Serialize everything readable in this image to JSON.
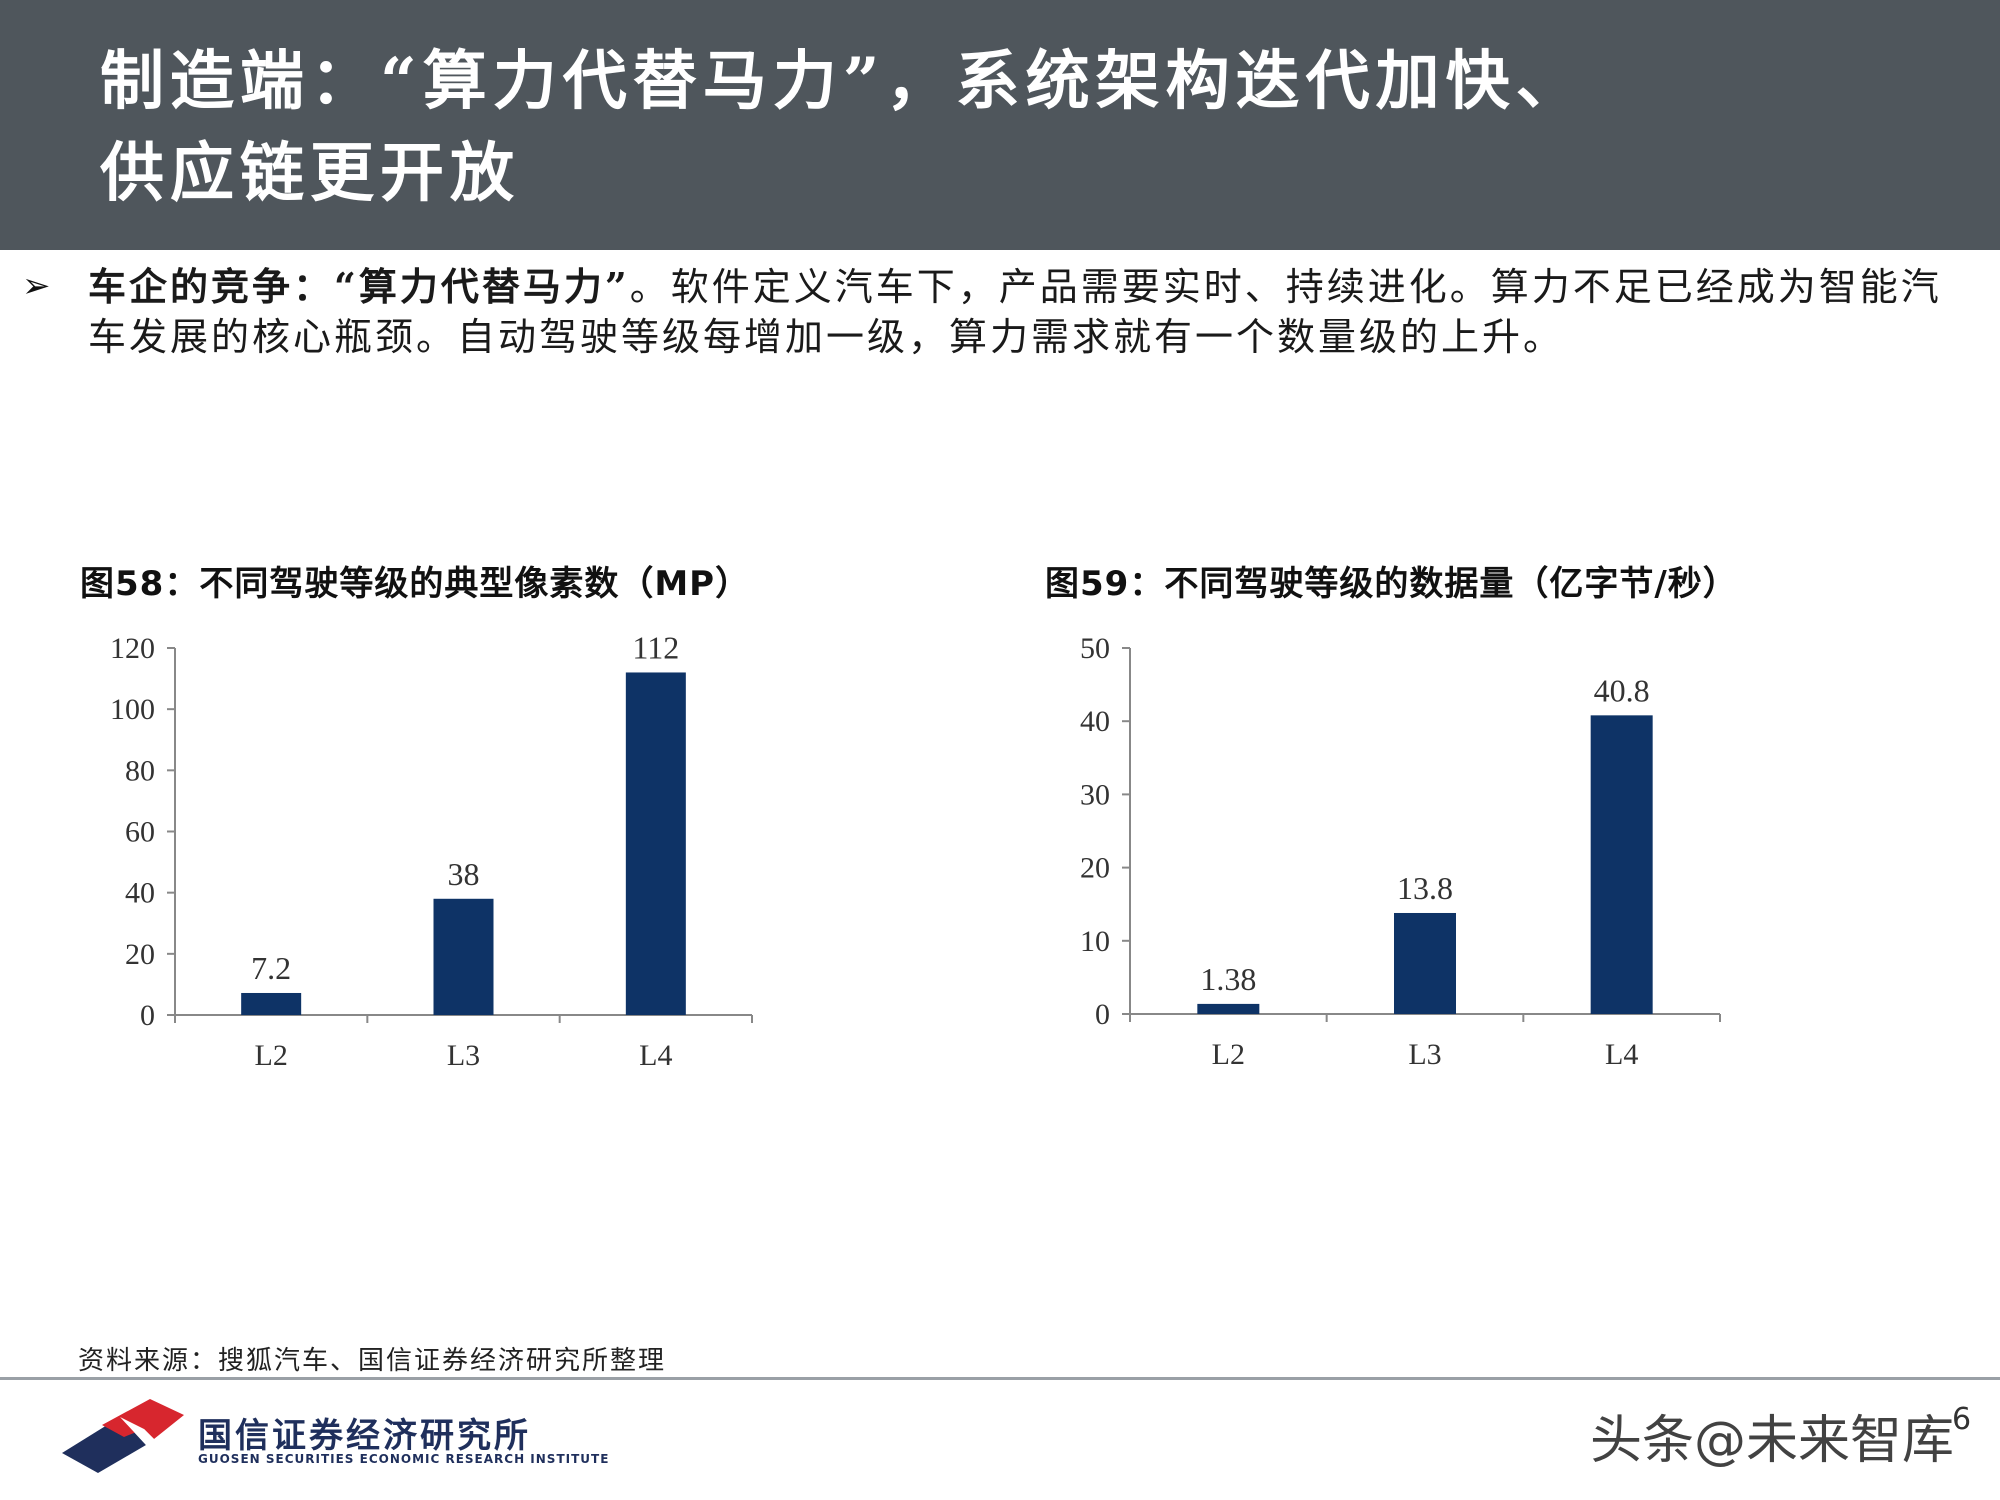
{
  "header": {
    "title_line1": "制造端：“算力代替马力”，系统架构迭代加快、",
    "title_line2": "供应链更开放"
  },
  "intro": {
    "bullet_icon": "arrowhead-bullet-icon",
    "lead": "车企的竞争：“算力代替马力”",
    "body": "。软件定义汽车下，产品需要实时、持续进化。算力不足已经成为智能汽车发展的核心瓶颈。自动驾驶等级每增加一级，算力需求就有一个数量级的上升。"
  },
  "chart_data": [
    {
      "type": "bar",
      "title": "图58：不同驾驶等级的典型像素数（MP）",
      "categories": [
        "L2",
        "L3",
        "L4"
      ],
      "values": [
        7.2,
        38,
        112
      ],
      "value_labels": [
        "7.2",
        "38",
        "112"
      ],
      "yticks": [
        "0",
        "20",
        "40",
        "60",
        "80",
        "100",
        "120"
      ],
      "ylim": [
        0,
        120
      ],
      "grid": false,
      "bar_color": "#0e3366"
    },
    {
      "type": "bar",
      "title": "图59：不同驾驶等级的数据量（亿字节/秒）",
      "categories": [
        "L2",
        "L3",
        "L4"
      ],
      "values": [
        1.38,
        13.8,
        40.8
      ],
      "value_labels": [
        "1.38",
        "13.8",
        "40.8"
      ],
      "yticks": [
        "0",
        "10",
        "20",
        "30",
        "40",
        "50"
      ],
      "ylim": [
        0,
        50
      ],
      "grid": false,
      "bar_color": "#0e3366"
    }
  ],
  "source": "资料来源：搜狐汽车、国信证券经济研究所整理",
  "footer": {
    "logo_icon": "guosen-logo-icon",
    "logo_cn": "国信证券经济研究所",
    "logo_en": "GUOSEN SECURITIES ECONOMIC RESEARCH INSTITUTE",
    "page_number": "6",
    "watermark": "头条@未来智库"
  },
  "colors": {
    "banner": "#4f565c",
    "bar": "#0e3366",
    "logo_red": "#d7262e",
    "logo_navy": "#1f2f5c"
  }
}
